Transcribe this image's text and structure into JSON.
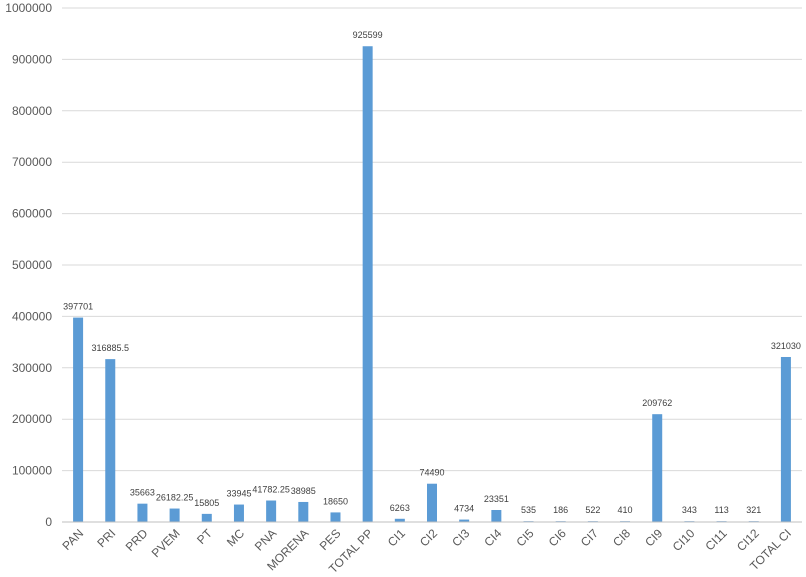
{
  "chart_data": {
    "type": "bar",
    "categories": [
      "PAN",
      "PRI",
      "PRD",
      "PVEM",
      "PT",
      "MC",
      "PNA",
      "MORENA",
      "PES",
      "TOTAL PP",
      "CI1",
      "CI2",
      "CI3",
      "CI4",
      "CI5",
      "CI6",
      "CI7",
      "CI8",
      "CI9",
      "CI10",
      "CI11",
      "CI12",
      "TOTAL CI"
    ],
    "values": [
      397701,
      316885.5,
      35663,
      26182.25,
      15805,
      33945,
      41782.25,
      38985,
      18650,
      925599,
      6263,
      74490,
      4734,
      23351,
      535,
      186,
      522,
      410,
      209762,
      343,
      113,
      321,
      321030
    ],
    "data_labels": [
      "397701",
      "316885.5",
      "35663",
      "26182.25",
      "15805",
      "33945",
      "41782.25",
      "38985",
      "18650",
      "925599",
      "6263",
      "74490",
      "4734",
      "23351",
      "535",
      "186",
      "522",
      "410",
      "209762",
      "343",
      "113",
      "321",
      "321030"
    ],
    "y_ticks": [
      "0",
      "100000",
      "200000",
      "300000",
      "400000",
      "500000",
      "600000",
      "700000",
      "800000",
      "900000",
      "1000000"
    ],
    "ylim": [
      0,
      1000000
    ],
    "grid": true,
    "bar_color": "#5b9bd5",
    "title": "",
    "xlabel": "",
    "ylabel": ""
  }
}
